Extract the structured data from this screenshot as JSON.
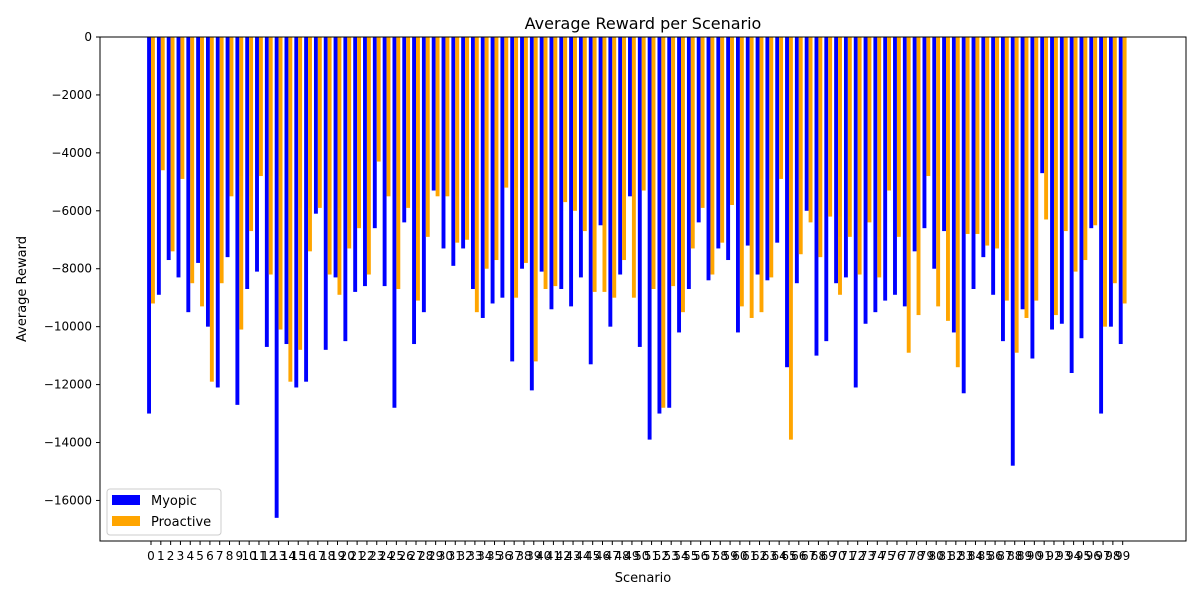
{
  "chart_data": {
    "type": "bar",
    "title": "Average Reward per Scenario",
    "xlabel": "Scenario",
    "ylabel": "Average Reward",
    "ylim": [
      -17400,
      0
    ],
    "yticks": [
      0,
      -2000,
      -4000,
      -6000,
      -8000,
      -10000,
      -12000,
      -14000,
      -16000
    ],
    "ytick_labels": [
      "0",
      "−2000",
      "−4000",
      "−6000",
      "−8000",
      "−10000",
      "−12000",
      "−14000",
      "−16000"
    ],
    "grid": false,
    "legend_position": "bottom-left",
    "categories": [
      "0",
      "1",
      "2",
      "3",
      "4",
      "5",
      "6",
      "7",
      "8",
      "9",
      "10",
      "11",
      "12",
      "13",
      "14",
      "15",
      "16",
      "17",
      "18",
      "19",
      "20",
      "21",
      "22",
      "23",
      "24",
      "25",
      "26",
      "27",
      "28",
      "29",
      "30",
      "31",
      "32",
      "33",
      "34",
      "35",
      "36",
      "37",
      "38",
      "39",
      "40",
      "41",
      "42",
      "43",
      "44",
      "45",
      "46",
      "47",
      "48",
      "49",
      "50",
      "51",
      "52",
      "53",
      "54",
      "55",
      "56",
      "57",
      "58",
      "59",
      "60",
      "61",
      "62",
      "63",
      "64",
      "65",
      "66",
      "67",
      "68",
      "69",
      "70",
      "71",
      "72",
      "73",
      "74",
      "75",
      "76",
      "77",
      "78",
      "79",
      "80",
      "81",
      "82",
      "83",
      "84",
      "85",
      "86",
      "87",
      "88",
      "89",
      "90",
      "91",
      "92",
      "93",
      "94",
      "95",
      "96",
      "97",
      "98",
      "99"
    ],
    "series": [
      {
        "name": "Myopic",
        "color": "#0000ff",
        "values": [
          -13000,
          -8900,
          -7700,
          -8300,
          -9500,
          -7800,
          -10000,
          -12100,
          -7600,
          -12700,
          -8700,
          -8100,
          -10700,
          -16600,
          -10600,
          -12100,
          -11900,
          -6100,
          -10800,
          -8300,
          -10500,
          -8800,
          -8600,
          -6600,
          -8600,
          -12800,
          -6400,
          -10600,
          -9500,
          -5300,
          -7300,
          -7900,
          -7300,
          -8700,
          -9700,
          -9200,
          -9000,
          -11200,
          -8000,
          -12200,
          -8100,
          -9400,
          -8700,
          -9300,
          -8300,
          -11300,
          -6500,
          -10000,
          -8200,
          -5500,
          -10700,
          -13900,
          -13000,
          -12800,
          -10200,
          -8700,
          -6400,
          -8400,
          -7300,
          -7700,
          -10200,
          -7200,
          -8200,
          -8400,
          -7100,
          -11400,
          -8500,
          -6000,
          -11000,
          -10500,
          -8500,
          -8300,
          -12100,
          -9900,
          -9500,
          -9100,
          -8900,
          -9300,
          -7400,
          -6600,
          -8000,
          -6700,
          -10200,
          -12300,
          -8700,
          -7600,
          -8900,
          -10500,
          -14800,
          -9400,
          -11100,
          -4700,
          -10100,
          -9900,
          -11600,
          -10400,
          -6600,
          -13000,
          -10000,
          -10600
        ]
      },
      {
        "name": "Proactive",
        "color": "#ffa500",
        "values": [
          -9200,
          -4600,
          -7400,
          -4900,
          -8500,
          -9300,
          -11900,
          -8500,
          -5500,
          -10100,
          -6700,
          -4800,
          -8200,
          -10100,
          -11900,
          -10800,
          -7400,
          -5900,
          -8200,
          -8900,
          -7300,
          -6600,
          -8200,
          -4300,
          -5500,
          -8700,
          -5900,
          -9100,
          -6900,
          -5500,
          -5500,
          -7100,
          -7000,
          -9500,
          -8000,
          -7700,
          -5200,
          -9000,
          -7800,
          -11200,
          -8700,
          -8600,
          -5700,
          -6000,
          -6700,
          -8800,
          -8800,
          -9000,
          -7700,
          -9000,
          -5300,
          -8700,
          -12800,
          -8600,
          -9500,
          -7300,
          -5900,
          -8200,
          -7100,
          -5800,
          -9300,
          -9700,
          -9500,
          -8300,
          -4900,
          -13900,
          -7500,
          -6400,
          -7600,
          -6200,
          -8900,
          -6900,
          -8200,
          -6400,
          -8300,
          -5300,
          -6900,
          -10900,
          -9600,
          -4800,
          -9300,
          -9800,
          -11400,
          -6800,
          -6800,
          -7200,
          -7300,
          -9100,
          -10900,
          -9700,
          -9100,
          -6300,
          -9600,
          -6700,
          -8100,
          -7700,
          -6500,
          -10000,
          -8500,
          -9200
        ]
      }
    ]
  }
}
